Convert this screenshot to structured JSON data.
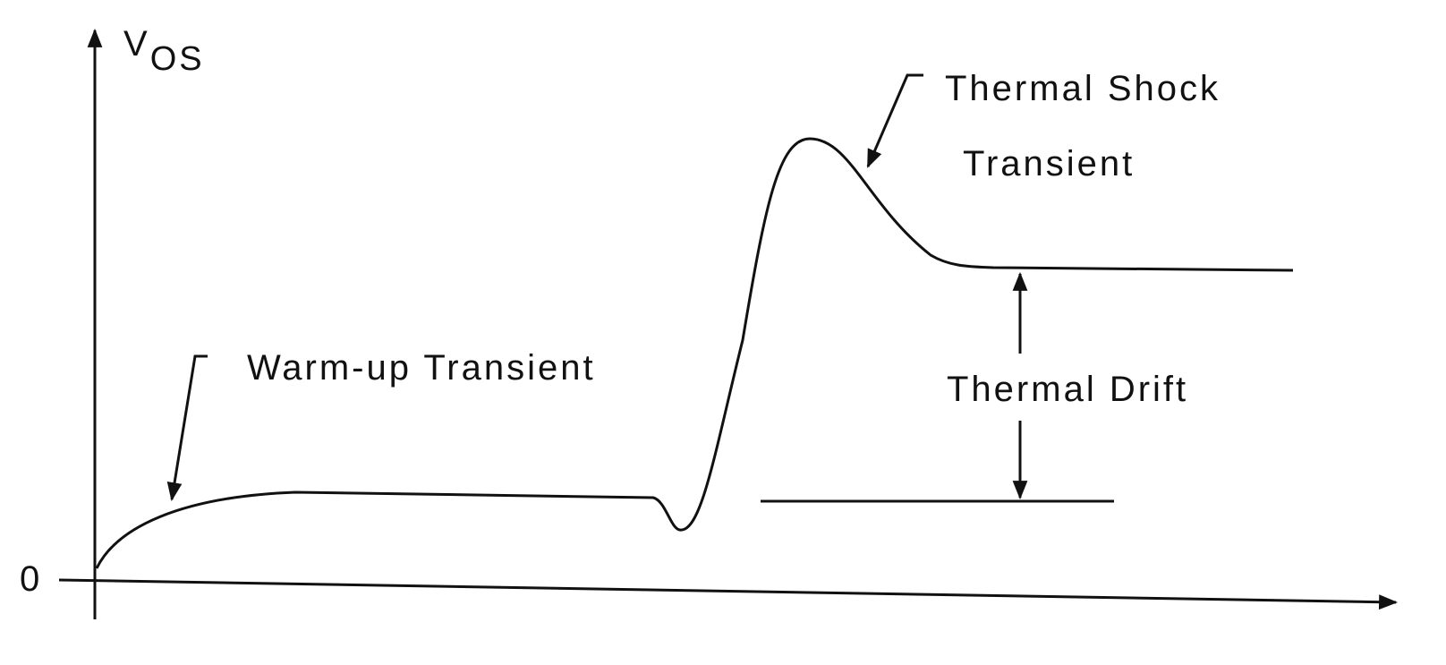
{
  "y_axis_label": {
    "base": "V",
    "subscript": "OS"
  },
  "origin_label": "0",
  "annotations": {
    "warm_up": "Warm-up Transient",
    "thermal_shock": [
      "Thermal Shock",
      "Transient"
    ],
    "thermal_drift": "Thermal Drift"
  }
}
